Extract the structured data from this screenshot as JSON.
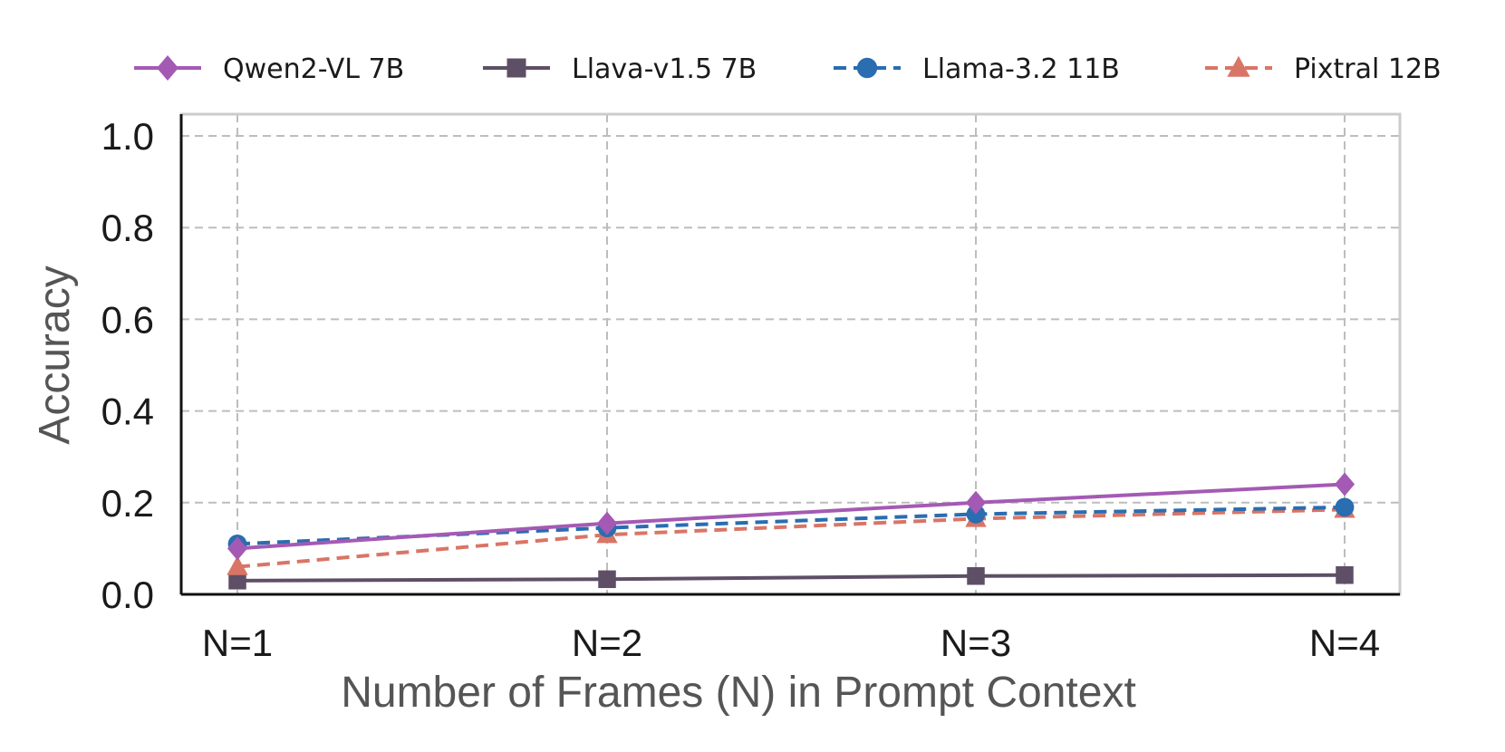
{
  "chart_data": {
    "type": "line",
    "xlabel": "Number of Frames (N) in Prompt Context",
    "ylabel": "Accuracy",
    "categories": [
      "N=1",
      "N=2",
      "N=3",
      "N=4"
    ],
    "ylim": [
      0,
      1.0
    ],
    "yticks": [
      0.0,
      0.2,
      0.4,
      0.6,
      0.8,
      1.0
    ],
    "ytick_labels": [
      "0.0",
      "0.2",
      "0.4",
      "0.6",
      "0.8",
      "1.0"
    ],
    "grid": true,
    "legend_position": "top",
    "series": [
      {
        "name": "Qwen2-VL 7B",
        "values": [
          0.1,
          0.155,
          0.2,
          0.24
        ],
        "color": "#a45ab4",
        "marker": "diamond",
        "dashed": false
      },
      {
        "name": "Llava-v1.5 7B",
        "values": [
          0.03,
          0.033,
          0.04,
          0.042
        ],
        "color": "#5e4f66",
        "marker": "square",
        "dashed": false
      },
      {
        "name": "Llama-3.2 11B",
        "values": [
          0.11,
          0.145,
          0.175,
          0.19
        ],
        "color": "#2a6db0",
        "marker": "circle",
        "dashed": true
      },
      {
        "name": "Pixtral 12B",
        "values": [
          0.06,
          0.13,
          0.165,
          0.185
        ],
        "color": "#d97566",
        "marker": "triangle",
        "dashed": true
      }
    ]
  }
}
